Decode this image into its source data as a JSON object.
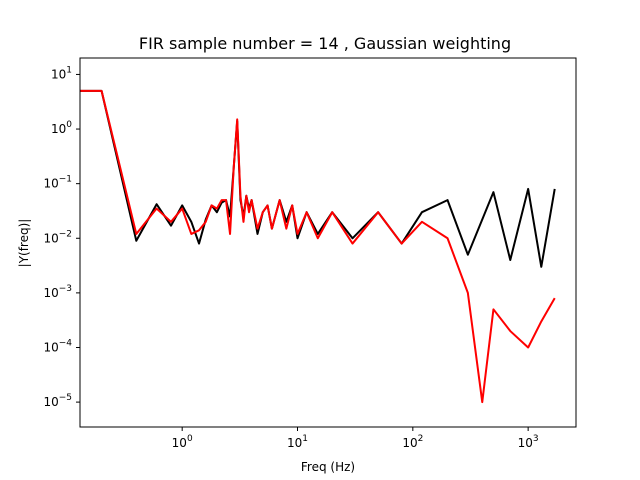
{
  "chart_data": {
    "type": "line",
    "title": "FIR sample number = 14 , Gaussian weighting",
    "xlabel": "Freq (Hz)",
    "ylabel": "|Y(freq)|",
    "xscale": "log",
    "yscale": "log",
    "xlim": [
      0.13,
      2600
    ],
    "ylim": [
      3.5e-06,
      20
    ],
    "grid": false,
    "x_ticks": [
      {
        "value": 1,
        "base": "10",
        "exp": "0"
      },
      {
        "value": 10,
        "base": "10",
        "exp": "1"
      },
      {
        "value": 100,
        "base": "10",
        "exp": "2"
      },
      {
        "value": 1000,
        "base": "10",
        "exp": "3"
      }
    ],
    "y_ticks": [
      {
        "value": 1e-05,
        "base": "10",
        "exp": "−5"
      },
      {
        "value": 0.0001,
        "base": "10",
        "exp": "−4"
      },
      {
        "value": 0.001,
        "base": "10",
        "exp": "−3"
      },
      {
        "value": 0.01,
        "base": "10",
        "exp": "−2"
      },
      {
        "value": 0.1,
        "base": "10",
        "exp": "−1"
      },
      {
        "value": 1,
        "base": "10",
        "exp": "0"
      },
      {
        "value": 10,
        "base": "10",
        "exp": "1"
      }
    ],
    "series": [
      {
        "color": "#000000",
        "points": [
          [
            0.13,
            5
          ],
          [
            0.2,
            5
          ],
          [
            0.4,
            0.009
          ],
          [
            0.6,
            0.042
          ],
          [
            0.8,
            0.017
          ],
          [
            1.0,
            0.04
          ],
          [
            1.2,
            0.02
          ],
          [
            1.4,
            0.008
          ],
          [
            1.6,
            0.022
          ],
          [
            1.8,
            0.04
          ],
          [
            2.0,
            0.03
          ],
          [
            2.2,
            0.045
          ],
          [
            2.4,
            0.05
          ],
          [
            2.6,
            0.025
          ],
          [
            2.8,
            0.2
          ],
          [
            3.0,
            1.4
          ],
          [
            3.2,
            0.05
          ],
          [
            3.4,
            0.025
          ],
          [
            3.6,
            0.06
          ],
          [
            3.8,
            0.035
          ],
          [
            4.0,
            0.05
          ],
          [
            4.5,
            0.012
          ],
          [
            5,
            0.03
          ],
          [
            5.5,
            0.04
          ],
          [
            6,
            0.015
          ],
          [
            7,
            0.05
          ],
          [
            8,
            0.02
          ],
          [
            9,
            0.04
          ],
          [
            10,
            0.01
          ],
          [
            12,
            0.03
          ],
          [
            15,
            0.012
          ],
          [
            20,
            0.03
          ],
          [
            30,
            0.01
          ],
          [
            50,
            0.03
          ],
          [
            80,
            0.008
          ],
          [
            120,
            0.03
          ],
          [
            200,
            0.05
          ],
          [
            300,
            0.005
          ],
          [
            500,
            0.07
          ],
          [
            700,
            0.004
          ],
          [
            1000,
            0.08
          ],
          [
            1300,
            0.003
          ],
          [
            1700,
            0.08
          ]
        ]
      },
      {
        "color": "#ff0000",
        "points": [
          [
            0.13,
            5
          ],
          [
            0.2,
            5
          ],
          [
            0.4,
            0.012
          ],
          [
            0.6,
            0.035
          ],
          [
            0.8,
            0.02
          ],
          [
            1.0,
            0.035
          ],
          [
            1.2,
            0.012
          ],
          [
            1.4,
            0.014
          ],
          [
            1.6,
            0.02
          ],
          [
            1.8,
            0.04
          ],
          [
            2.0,
            0.035
          ],
          [
            2.2,
            0.05
          ],
          [
            2.4,
            0.05
          ],
          [
            2.6,
            0.012
          ],
          [
            2.8,
            0.2
          ],
          [
            3.0,
            1.5
          ],
          [
            3.2,
            0.06
          ],
          [
            3.4,
            0.02
          ],
          [
            3.6,
            0.06
          ],
          [
            3.8,
            0.03
          ],
          [
            4.0,
            0.05
          ],
          [
            4.5,
            0.015
          ],
          [
            5,
            0.03
          ],
          [
            5.5,
            0.04
          ],
          [
            6,
            0.015
          ],
          [
            7,
            0.05
          ],
          [
            8,
            0.015
          ],
          [
            9,
            0.04
          ],
          [
            10,
            0.012
          ],
          [
            12,
            0.03
          ],
          [
            15,
            0.01
          ],
          [
            20,
            0.03
          ],
          [
            30,
            0.008
          ],
          [
            50,
            0.03
          ],
          [
            80,
            0.008
          ],
          [
            120,
            0.02
          ],
          [
            200,
            0.01
          ],
          [
            300,
            0.001
          ],
          [
            400,
            1e-05
          ],
          [
            500,
            0.0005
          ],
          [
            700,
            0.0002
          ],
          [
            1000,
            0.0001
          ],
          [
            1300,
            0.0003
          ],
          [
            1700,
            0.0008
          ]
        ]
      }
    ]
  }
}
